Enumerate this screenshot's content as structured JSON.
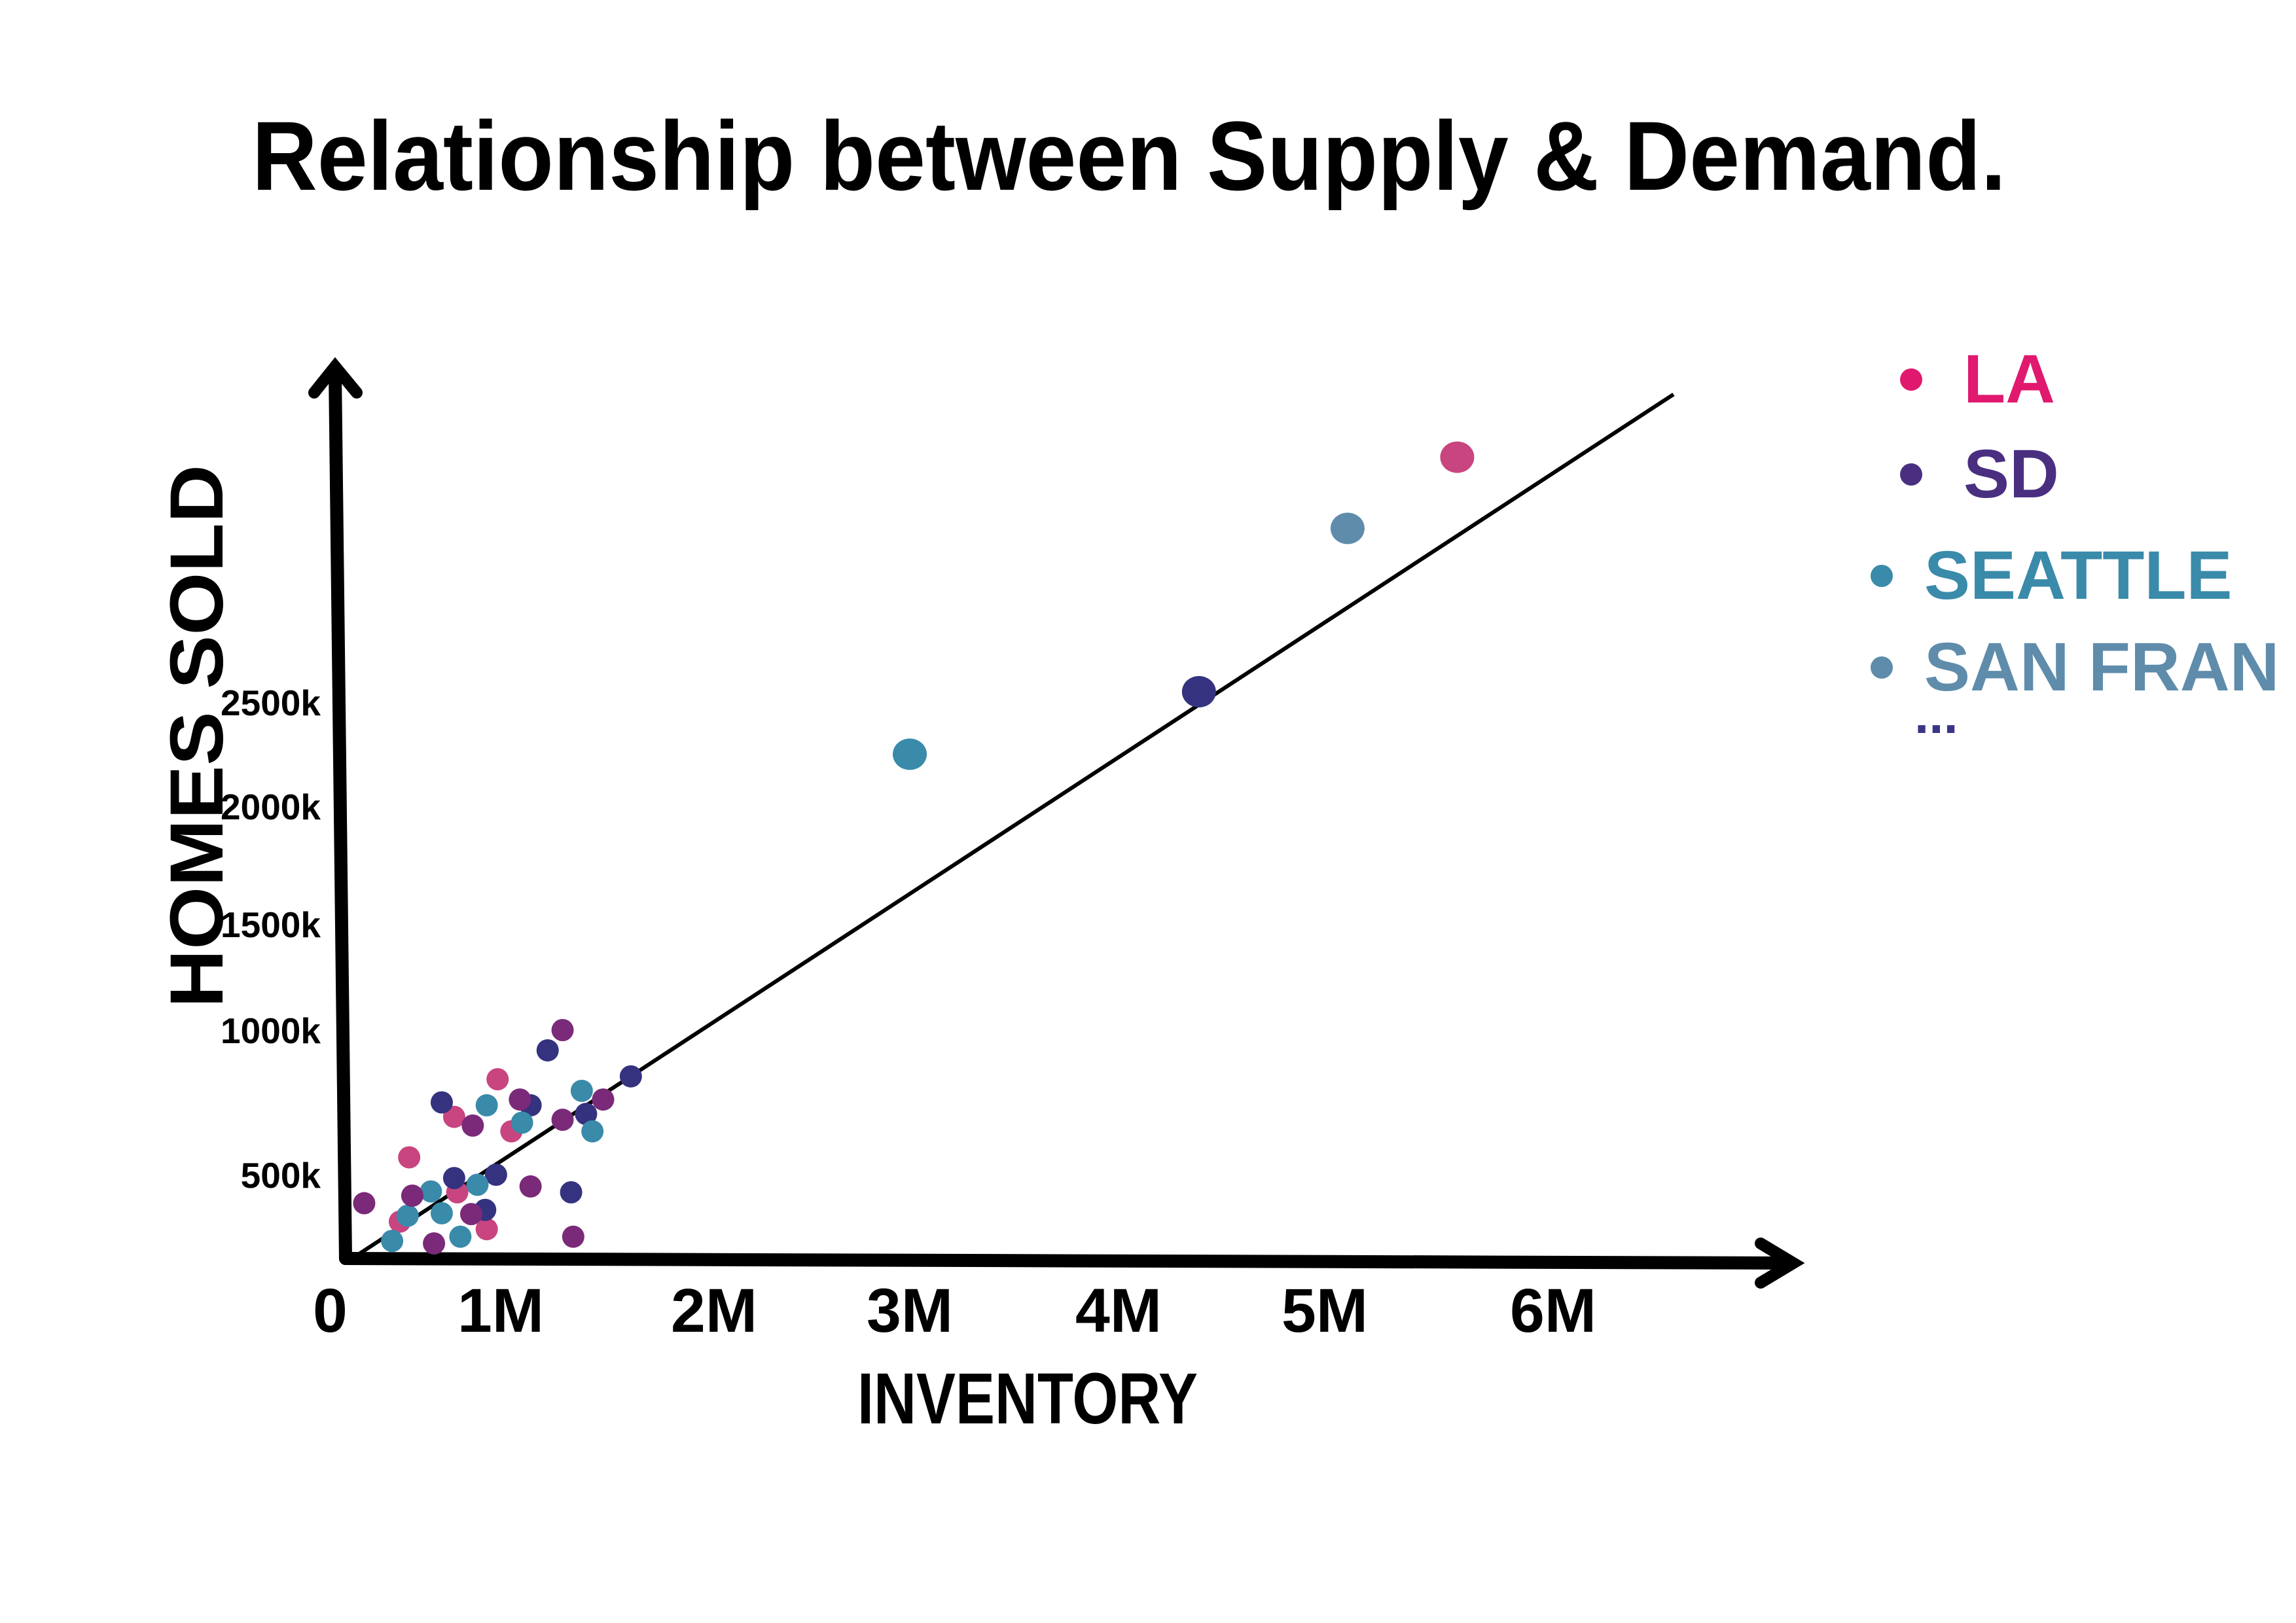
{
  "chart_data": {
    "type": "scatter",
    "title": "Relationship between Supply & Demand.",
    "xlabel": "INVENTORY",
    "ylabel": "HOMES SOLD",
    "xlim": [
      0,
      7
    ],
    "ylim": [
      0,
      4000
    ],
    "x_ticks": [
      {
        "value": 0,
        "label": "0"
      },
      {
        "value": 1,
        "label": "1M"
      },
      {
        "value": 2,
        "label": "2M"
      },
      {
        "value": 3,
        "label": "3M"
      },
      {
        "value": 4,
        "label": "4M"
      },
      {
        "value": 5,
        "label": "5M"
      },
      {
        "value": 6,
        "label": "6M"
      }
    ],
    "y_ticks": [
      {
        "value": 500,
        "label": "500k"
      },
      {
        "value": 1000,
        "label": "1000k"
      },
      {
        "value": 1500,
        "label": "1500k"
      },
      {
        "value": 2000,
        "label": "2000k"
      },
      {
        "value": 2500,
        "label": "2500k"
      }
    ],
    "grid": false,
    "legend_placement": "right",
    "trend_line": {
      "x": [
        0,
        6.53
      ],
      "y": [
        0,
        3970
      ]
    },
    "series": [
      {
        "name": "LA",
        "color": "#e0196f",
        "point_color": "#c8457f",
        "points": [
          [
            5.58,
            3670
          ],
          [
            0.98,
            830
          ],
          [
            0.7,
            700
          ],
          [
            1.05,
            650
          ],
          [
            0.41,
            560
          ],
          [
            0.72,
            395
          ],
          [
            0.35,
            220
          ],
          [
            0.91,
            175
          ]
        ]
      },
      {
        "name": "SD",
        "color": "#4a2f80",
        "point_color": "#35327f",
        "points": [
          [
            4.39,
            2550
          ],
          [
            1.22,
            930
          ],
          [
            0.62,
            750
          ],
          [
            1.61,
            840
          ],
          [
            1.14,
            740
          ],
          [
            1.4,
            710
          ],
          [
            0.97,
            500
          ],
          [
            0.7,
            480
          ],
          [
            1.33,
            395
          ],
          [
            0.9,
            290
          ]
        ]
      },
      {
        "name": "SEATTLE",
        "color": "#3a8aaa",
        "point_color": "#3a8aaa",
        "points": [
          [
            3.0,
            2250
          ],
          [
            1.38,
            790
          ],
          [
            0.91,
            740
          ],
          [
            1.1,
            680
          ],
          [
            1.43,
            650
          ],
          [
            0.55,
            400
          ],
          [
            0.85,
            440
          ],
          [
            0.4,
            255
          ],
          [
            0.62,
            270
          ],
          [
            0.3,
            105
          ],
          [
            0.74,
            130
          ]
        ]
      },
      {
        "name": "SAN FRAN",
        "color": "#5f8cab",
        "point_color": "#5f8cab",
        "points": [
          [
            5.1,
            3330
          ]
        ]
      },
      {
        "name": "...",
        "color": "#3a3585",
        "point_color": "#7a2a78",
        "points": [
          [
            1.29,
            1000
          ],
          [
            1.09,
            760
          ],
          [
            1.48,
            760
          ],
          [
            0.82,
            670
          ],
          [
            1.29,
            690
          ],
          [
            1.14,
            430
          ],
          [
            0.12,
            330
          ],
          [
            0.43,
            375
          ],
          [
            0.81,
            265
          ],
          [
            0.57,
            90
          ],
          [
            1.34,
            130
          ]
        ]
      }
    ]
  }
}
